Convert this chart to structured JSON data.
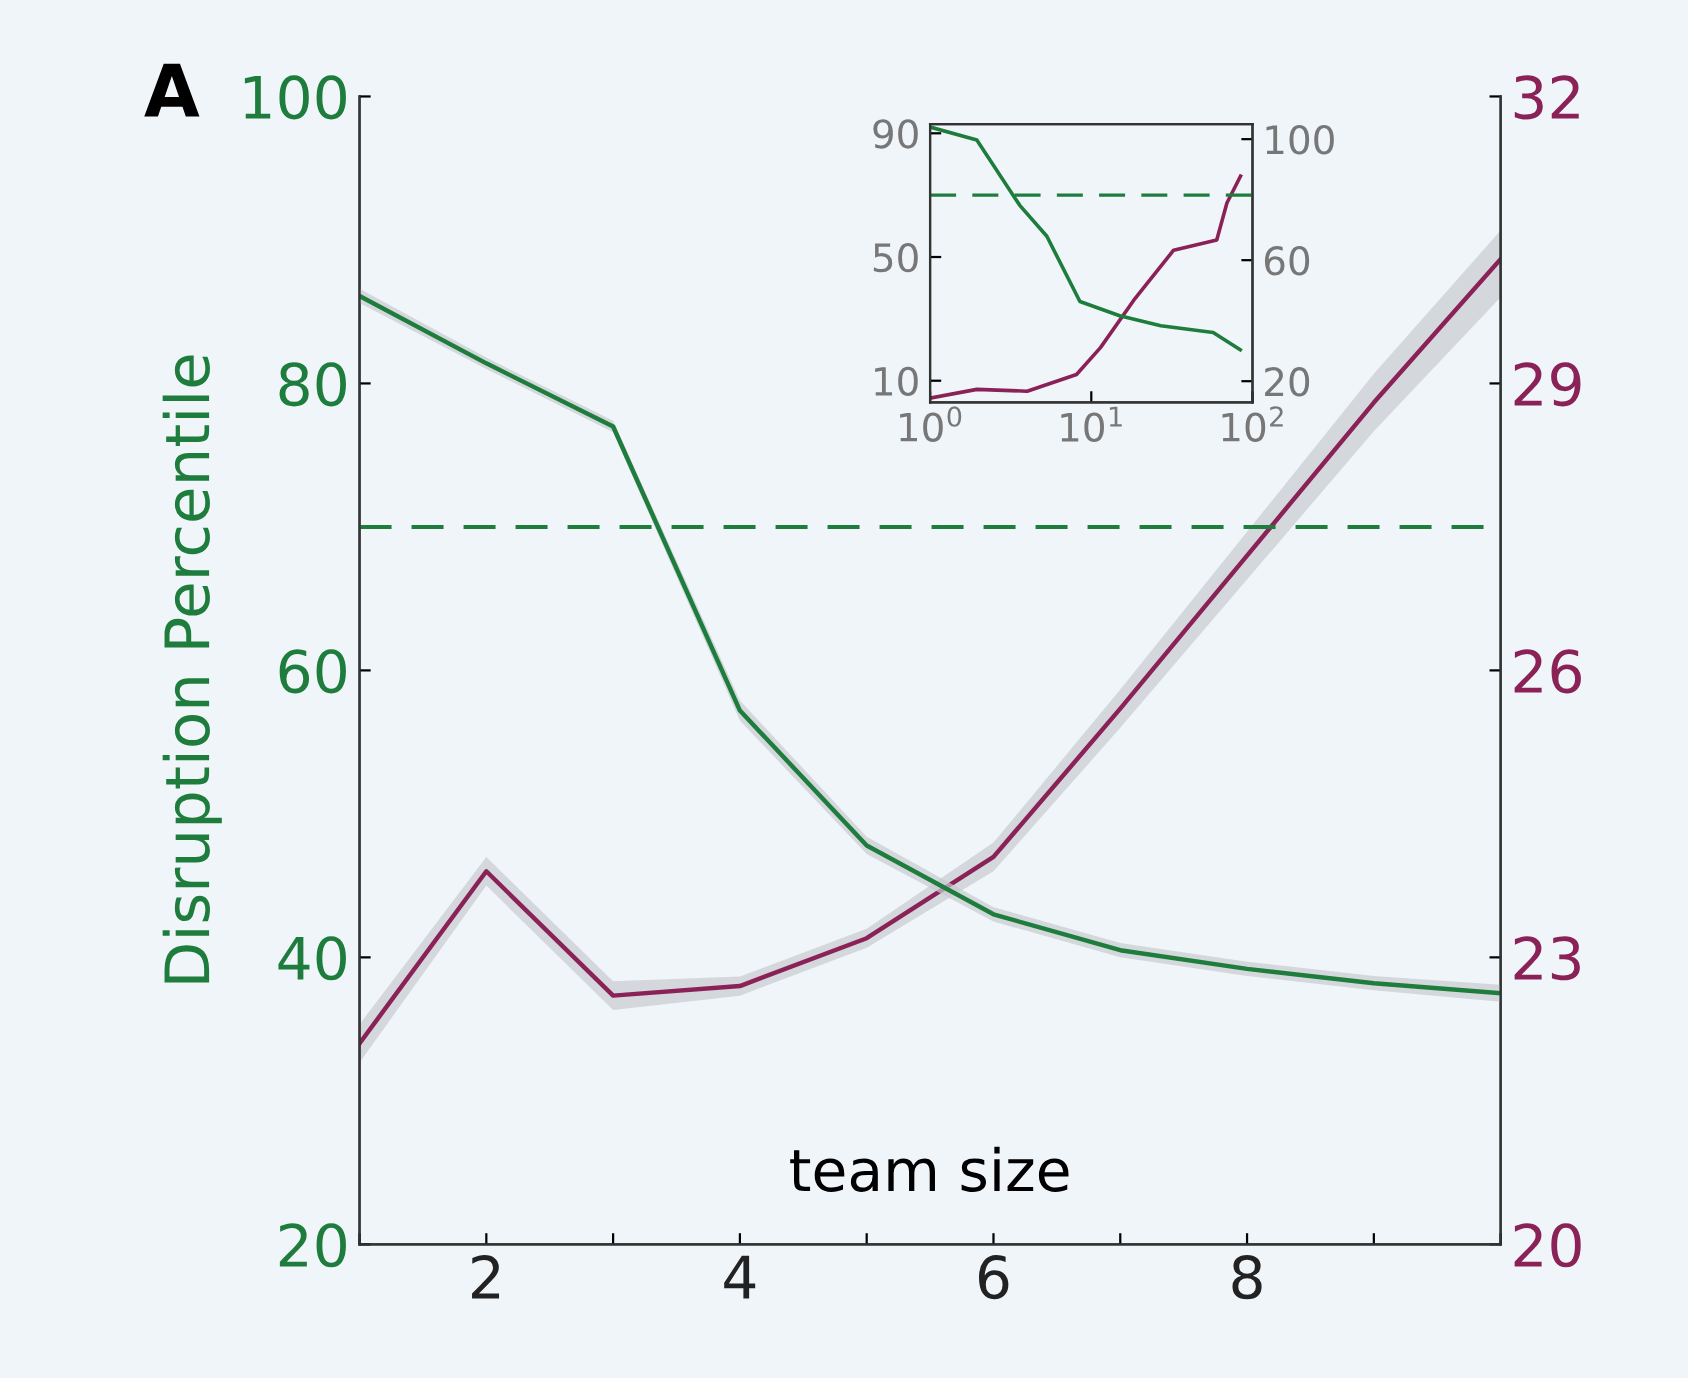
{
  "chart_data": [
    {
      "type": "line",
      "ylabel": "Disruption Percentile",
      "xlabel": "team size",
      "annotations": [
        "A"
      ],
      "x": [
        1,
        2,
        3,
        4,
        5,
        6,
        7,
        8,
        9,
        10
      ],
      "xlim": [
        1,
        10
      ],
      "xticks": [
        {
          "value": 1,
          "label": null
        },
        2,
        {
          "value": 3,
          "label": null
        },
        4,
        {
          "value": 5,
          "label": null
        },
        6,
        {
          "value": 7,
          "label": null
        },
        8,
        {
          "value": 9,
          "label": null
        },
        {
          "value": 10,
          "label": null
        }
      ],
      "ylim": [
        20,
        100
      ],
      "yticks": [
        20,
        40,
        60,
        80,
        100
      ],
      "y2lim": [
        20,
        32
      ],
      "y2ticks": [
        20,
        23,
        26,
        29,
        32
      ],
      "grid": false,
      "legend": false,
      "series": [
        {
          "color": "#1e7d3c",
          "values": [
            86.1,
            81.4,
            77.0,
            57.2,
            47.8,
            43.0,
            40.5,
            39.2,
            38.2,
            37.5
          ],
          "lower": [
            85.6,
            81.0,
            76.6,
            56.5,
            47.2,
            42.5,
            40.0,
            38.7,
            37.7,
            36.9
          ],
          "upper": [
            86.6,
            81.8,
            77.4,
            57.9,
            48.4,
            43.5,
            41.0,
            39.7,
            38.7,
            38.1
          ]
        },
        {
          "color": "#8a2257",
          "axis": "y2",
          "values": [
            22.1,
            23.9,
            22.6,
            22.7,
            23.2,
            24.05,
            25.6,
            27.2,
            28.8,
            30.3
          ],
          "lower": [
            21.9,
            23.75,
            22.45,
            22.6,
            23.1,
            23.9,
            25.4,
            26.95,
            28.5,
            29.9
          ],
          "upper": [
            22.3,
            24.05,
            22.75,
            22.8,
            23.3,
            24.2,
            25.8,
            27.45,
            29.1,
            30.6
          ]
        }
      ],
      "ref_lines": [
        {
          "axis": "y",
          "value": 70,
          "color": "#1e7d3c",
          "line_style": "dashed"
        }
      ]
    },
    {
      "type": "line",
      "log": "x",
      "xlim": [
        1,
        100
      ],
      "xticks": [
        {
          "value": 1,
          "label": "10$^{0}$"
        },
        {
          "value": 10,
          "label": "10$^{1}$"
        },
        {
          "value": 100,
          "label": "10$^{2}$"
        }
      ],
      "ylim": [
        3,
        93
      ],
      "yticks": [
        10,
        50,
        90
      ],
      "y2lim": [
        13,
        105
      ],
      "y2ticks": [
        20,
        60,
        100
      ],
      "grid": false,
      "legend": false,
      "series": [
        {
          "color": "#1e7d3c",
          "x": [
            1,
            1.95,
            3.6,
            5.3,
            8.5,
            15,
            27,
            57,
            84
          ],
          "values": [
            92,
            87.8,
            66.7,
            56.7,
            35.6,
            31,
            27.8,
            25.6,
            20
          ]
        },
        {
          "color": "#8a2257",
          "axis": "y2",
          "x": [
            1,
            1.95,
            4.0,
            8.1,
            11.4,
            18.3,
            32.4,
            60,
            69.4,
            84.3
          ],
          "values": [
            14.4,
            17.3,
            16.7,
            22.2,
            31.1,
            46.7,
            63.3,
            66.7,
            78.9,
            87.8
          ]
        }
      ],
      "ref_lines": [
        {
          "axis": "y",
          "value": 70,
          "color": "#1e7d3c",
          "line_style": "dashed"
        }
      ]
    }
  ]
}
